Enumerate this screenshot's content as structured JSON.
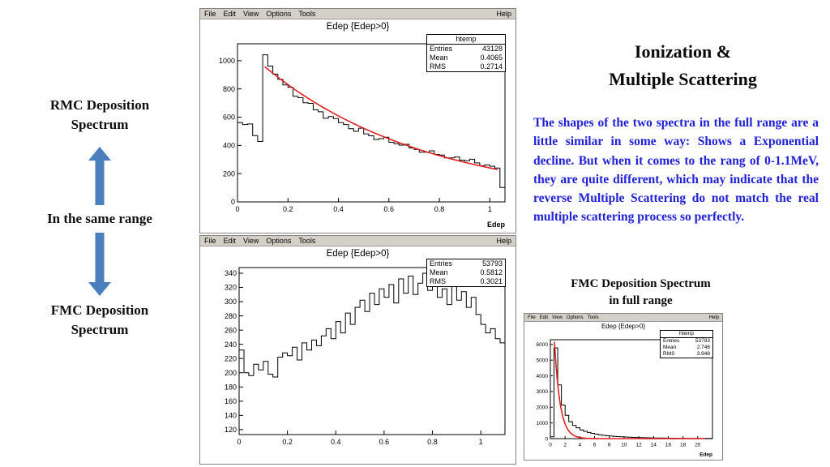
{
  "colors": {
    "paragraph_blue": "#2121d6",
    "arrow_blue": "#4a7ebc",
    "menu_bar_gray": "#d4d0c8",
    "fit_curve_red": "#e02020"
  },
  "left_column": {
    "rmc_label": "RMC Deposition\nSpectrum",
    "range_label": "In the same range",
    "fmc_label": "FMC Deposition\nSpectrum"
  },
  "right_column": {
    "title": "Ionization &\nMultiple Scattering",
    "paragraph": "The shapes of the two spectra in the full range are a little similar in some way: Shows a Exponential decline. But when it comes to the rang of 0-1.1MeV, they are quite different, which may indicate that the reverse Multiple Scattering do not match the real multiple scattering process so perfectly.",
    "fmc_full_label": "FMC Deposition Spectrum\nin full range"
  },
  "windows": [
    {
      "menu": [
        "File",
        "Edit",
        "View",
        "Options",
        "Tools"
      ],
      "help": "Help"
    },
    {
      "menu": [
        "File",
        "Edit",
        "View",
        "Options",
        "Tools"
      ],
      "help": "Help"
    },
    {
      "menu": [
        "File",
        "Edit",
        "View",
        "Options",
        "Tools"
      ],
      "help": "Help"
    }
  ],
  "chart_data": [
    {
      "id": "rmc",
      "type": "bar",
      "subtype": "histogram-step",
      "title": "Edep {Edep>0}",
      "xlabel": "Edep",
      "ylabel": "",
      "xlim": [
        0,
        1.06
      ],
      "ylim": [
        0,
        1120
      ],
      "bin_width": 0.02,
      "xticks": [
        0,
        0.2,
        0.4,
        0.6,
        0.8,
        1
      ],
      "yticks": [
        0,
        200,
        400,
        600,
        800,
        1000
      ],
      "values": [
        562,
        548,
        552,
        470,
        428,
        1042,
        962,
        905,
        868,
        828,
        812,
        748,
        738,
        702,
        698,
        652,
        638,
        592,
        604,
        590,
        562,
        548,
        518,
        500,
        522,
        482,
        468,
        442,
        448,
        458,
        422,
        412,
        402,
        408,
        382,
        372,
        352,
        352,
        362,
        336,
        332,
        312,
        312,
        318,
        296,
        292,
        302,
        276,
        256,
        262,
        252,
        240,
        102
      ],
      "close": true,
      "fit": {
        "type": "exponential",
        "A": 955,
        "k": 1.55,
        "x0": 0.11,
        "range": [
          0.108,
          1.03
        ],
        "color": "#e02020"
      },
      "stats": {
        "header": "htemp",
        "rows": [
          [
            "Entries",
            "43128"
          ],
          [
            "Mean",
            "0.4065"
          ],
          [
            "RMS",
            "0.2714"
          ]
        ]
      }
    },
    {
      "id": "fmc",
      "type": "bar",
      "subtype": "histogram-step",
      "title": "Edep {Edep>0}",
      "xlabel": "",
      "ylabel": "",
      "xlim": [
        0,
        1.1
      ],
      "ylim": [
        113,
        348
      ],
      "bin_width": 0.02,
      "xticks": [
        0,
        0.2,
        0.4,
        0.6,
        0.8,
        1
      ],
      "yticks": [
        120,
        140,
        160,
        180,
        200,
        220,
        240,
        260,
        280,
        300,
        320,
        340
      ],
      "values": [
        232,
        200,
        196,
        212,
        204,
        216,
        198,
        194,
        222,
        228,
        224,
        236,
        218,
        242,
        232,
        246,
        238,
        252,
        262,
        248,
        272,
        256,
        284,
        268,
        292,
        302,
        286,
        312,
        296,
        318,
        306,
        324,
        298,
        332,
        312,
        336,
        310,
        326,
        340,
        316,
        328,
        306,
        318,
        296,
        322,
        302,
        314,
        292,
        306,
        282,
        268,
        256,
        262,
        248,
        242
      ],
      "close": false,
      "stats": {
        "header": "",
        "rows": [
          [
            "Entries",
            "53793"
          ],
          [
            "Mean",
            "0.5812"
          ],
          [
            "RMS",
            "0.3021"
          ]
        ]
      }
    },
    {
      "id": "fmcfull",
      "type": "bar",
      "subtype": "histogram-step",
      "title": "Edep {Edep>0}",
      "xlabel": "Edep",
      "ylabel": "",
      "xlim": [
        0,
        22
      ],
      "ylim": [
        0,
        6300
      ],
      "bin_width": 0.5,
      "xticks": [
        0,
        2,
        4,
        6,
        8,
        10,
        12,
        14,
        16,
        18,
        20
      ],
      "yticks": [
        0,
        1000,
        2000,
        3000,
        4000,
        5000,
        6000
      ],
      "values": [
        120,
        5780,
        3420,
        2140,
        1480,
        1080,
        840,
        690,
        555,
        465,
        395,
        338,
        288,
        248,
        214,
        188,
        164,
        144,
        128,
        114,
        101,
        90,
        80,
        72,
        64,
        58,
        52,
        47,
        42,
        38,
        35,
        31,
        28,
        26,
        23,
        21,
        19,
        18,
        16,
        15,
        13,
        12,
        11,
        10
      ],
      "close": true,
      "fit": {
        "type": "exponential",
        "A": 5780,
        "k": 1.3,
        "x0": 0.6,
        "range": [
          0.55,
          21
        ],
        "color": "#e02020"
      },
      "stats": {
        "header": "htemp",
        "rows": [
          [
            "Entries",
            "53793"
          ],
          [
            "Mean",
            "2.746"
          ],
          [
            "RMS",
            "3.948"
          ]
        ]
      }
    }
  ]
}
